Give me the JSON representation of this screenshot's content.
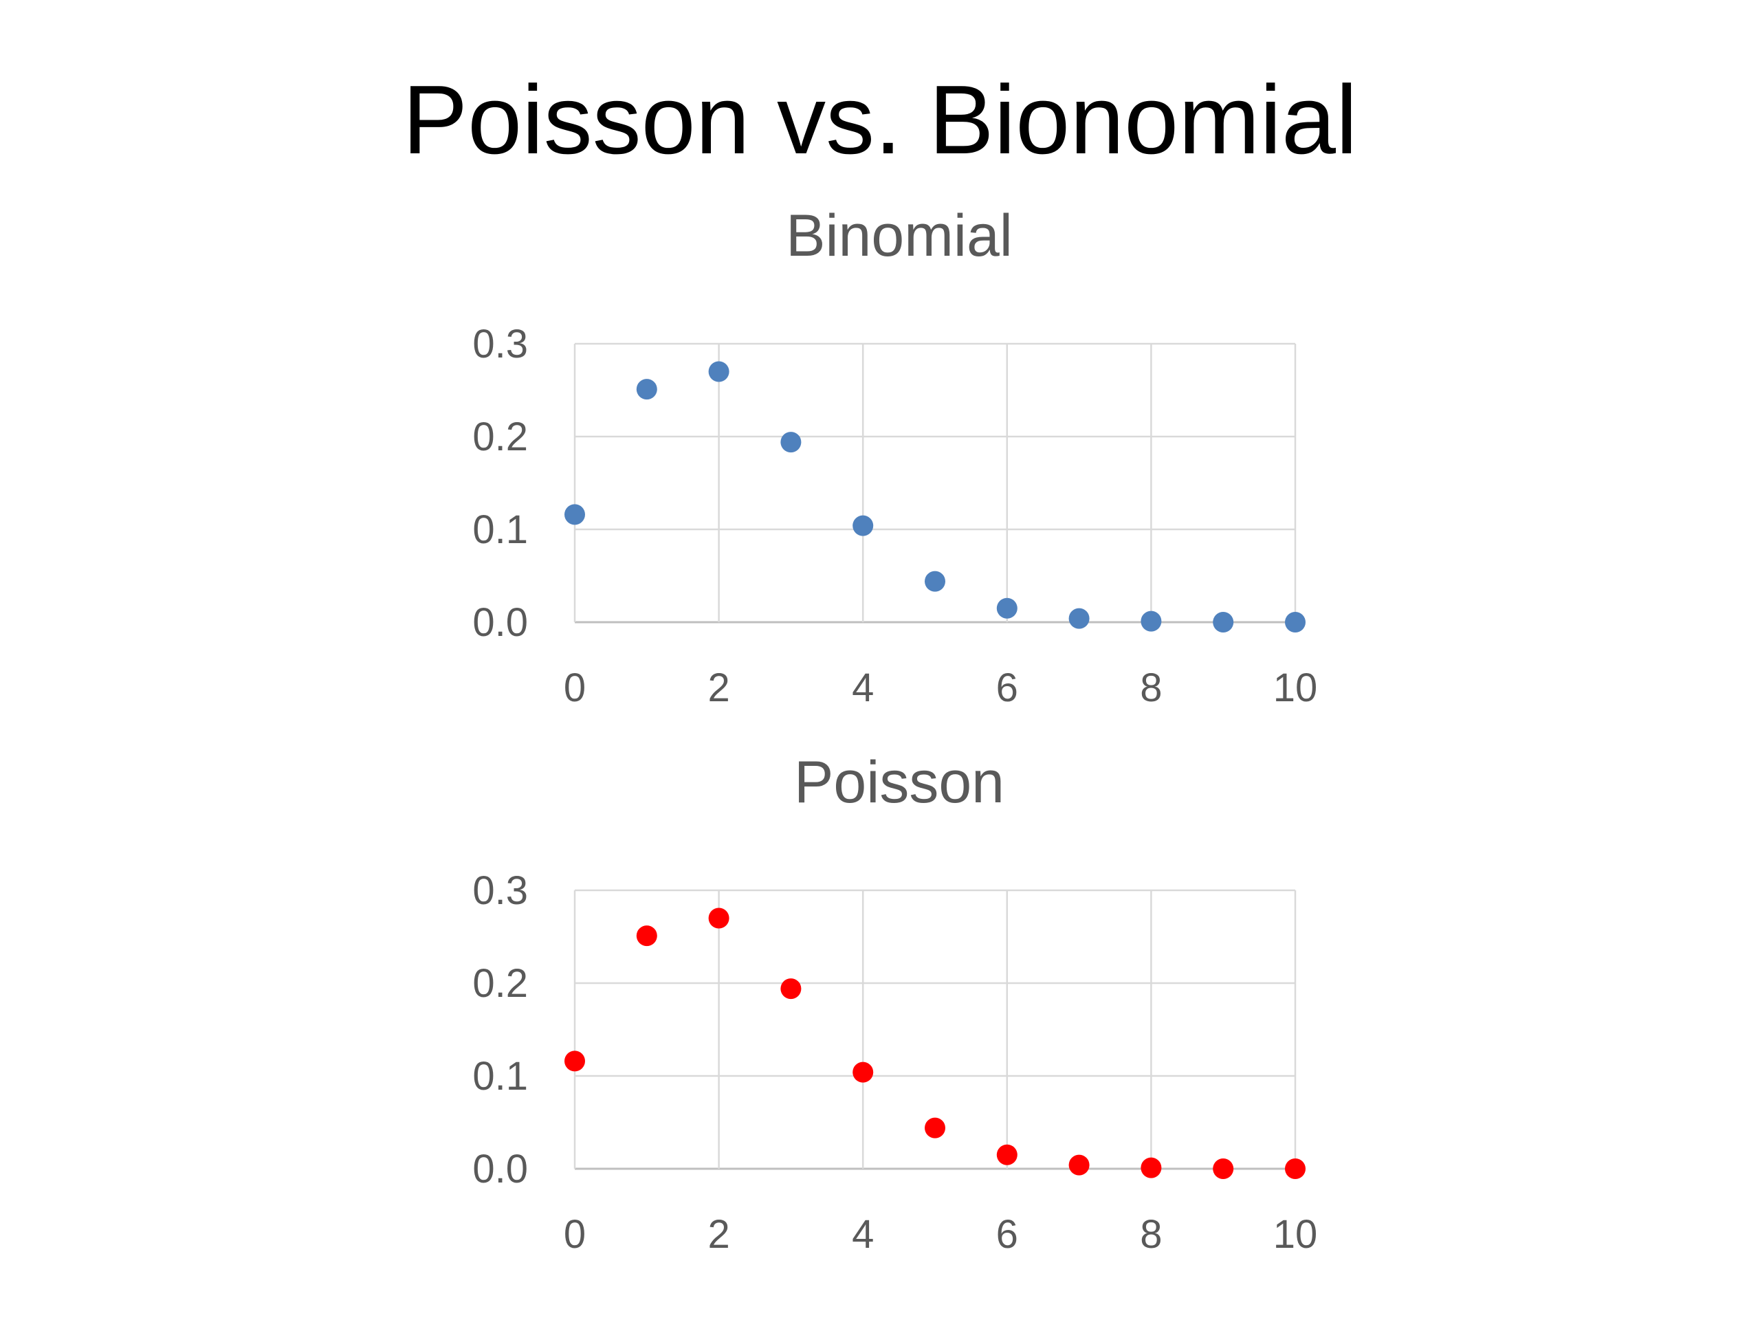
{
  "slide": {
    "title": "Poisson vs. Bionomial"
  },
  "chart_data": [
    {
      "type": "scatter",
      "title": "Binomial",
      "xlabel": "",
      "ylabel": "",
      "xlim": [
        0,
        10
      ],
      "ylim": [
        0,
        0.3
      ],
      "x_ticks": [
        0,
        2,
        4,
        6,
        8,
        10
      ],
      "y_ticks": [
        0.0,
        0.1,
        0.2,
        0.3
      ],
      "x_tick_labels": [
        "0",
        "2",
        "4",
        "6",
        "8",
        "10"
      ],
      "y_tick_labels": [
        "0.0",
        "0.1",
        "0.2",
        "0.3"
      ],
      "grid": true,
      "legend": "none",
      "series": [
        {
          "color": "#4f81bd",
          "x": [
            0,
            1,
            2,
            3,
            4,
            5,
            6,
            7,
            8,
            9,
            10
          ],
          "y": [
            0.116,
            0.251,
            0.27,
            0.194,
            0.104,
            0.044,
            0.015,
            0.004,
            0.001,
            0.0,
            0.0
          ]
        }
      ]
    },
    {
      "type": "scatter",
      "title": "Poisson",
      "xlabel": "",
      "ylabel": "",
      "xlim": [
        0,
        10
      ],
      "ylim": [
        0,
        0.3
      ],
      "x_ticks": [
        0,
        2,
        4,
        6,
        8,
        10
      ],
      "y_ticks": [
        0.0,
        0.1,
        0.2,
        0.3
      ],
      "x_tick_labels": [
        "0",
        "2",
        "4",
        "6",
        "8",
        "10"
      ],
      "y_tick_labels": [
        "0.0",
        "0.1",
        "0.2",
        "0.3"
      ],
      "grid": true,
      "legend": "none",
      "series": [
        {
          "color": "#ff0000",
          "x": [
            0,
            1,
            2,
            3,
            4,
            5,
            6,
            7,
            8,
            9,
            10
          ],
          "y": [
            0.116,
            0.251,
            0.27,
            0.194,
            0.104,
            0.044,
            0.015,
            0.004,
            0.001,
            0.0,
            0.0
          ]
        }
      ]
    }
  ]
}
